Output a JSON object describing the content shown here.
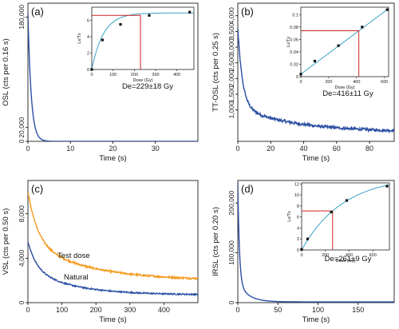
{
  "colors": {
    "signal": "#2b4fa3",
    "test": "#f39a1f",
    "fit": "#3aa3c6",
    "marker": "#cc2222",
    "axis": "#000000",
    "point": "#111111"
  },
  "chart_data": [
    {
      "id": "a",
      "type": "line",
      "panel_label": "(a)",
      "xlabel": "Time (s)",
      "ylabel": "OSL (cts per 0.16 s)",
      "xlim": [
        0,
        40
      ],
      "ylim": [
        0,
        200000
      ],
      "xticks": [
        0,
        10,
        20,
        30
      ],
      "xtick_labels": [
        "0",
        "10",
        "20",
        "30"
      ],
      "yticks": [
        0,
        20000,
        180000
      ],
      "ytick_labels": [
        "0",
        "20,000",
        "180,000"
      ],
      "series": [
        {
          "color": "signal",
          "decay": {
            "a": 185000,
            "k": 1.3,
            "b": 500,
            "c": 0,
            "k2": 1
          }
        }
      ],
      "inset": {
        "xlabel": "Dose (Gy)",
        "ylabel": "Lx/Tx",
        "xlim": [
          0,
          480
        ],
        "ylim": [
          0,
          7.6
        ],
        "xticks": [
          0,
          100,
          200,
          300,
          400
        ],
        "xtick_labels": [
          "0",
          "100",
          "200",
          "300",
          "400"
        ],
        "yticks": [
          0,
          2,
          4,
          6
        ],
        "ytick_labels": [
          "0",
          "2",
          "4",
          "6"
        ],
        "points": [
          [
            0,
            0.0
          ],
          [
            50,
            3.6
          ],
          [
            135,
            5.5
          ],
          [
            270,
            6.6
          ],
          [
            460,
            7.0
          ]
        ],
        "fit": {
          "type": "sat",
          "A": 6.9,
          "D0": 55
        },
        "natural": 6.6,
        "de": 229
      },
      "de_text": "De=229±18 Gy"
    },
    {
      "id": "b",
      "type": "line",
      "panel_label": "(b)",
      "xlabel": "Time (s)",
      "ylabel": "TT-OSL (cts per 0.25 s)",
      "xlim": [
        0,
        95
      ],
      "ylim": [
        0,
        4400
      ],
      "xticks": [
        0,
        20,
        40,
        60,
        80
      ],
      "xtick_labels": [
        "0",
        "20",
        "40",
        "60",
        "80"
      ],
      "yticks": [
        1000,
        1500,
        2000,
        2500,
        3000,
        3500,
        4000
      ],
      "ytick_labels": [
        "1,000",
        "1,500",
        "2,000",
        "2,500",
        "3,000",
        "3,500",
        "4,000"
      ],
      "series": [
        {
          "color": "signal",
          "noise": 45,
          "decay": {
            "a": 2500,
            "k": 0.35,
            "b": 800,
            "c": 300,
            "k2": 0.03
          }
        }
      ],
      "inset": {
        "xlabel": "Dose (Gy)",
        "ylabel": "Lx/Tx",
        "xlim": [
          0,
          630
        ],
        "ylim": [
          0,
          0.112
        ],
        "xticks": [
          0,
          200,
          400,
          600
        ],
        "xtick_labels": [
          "0",
          "200",
          "400",
          "600"
        ],
        "yticks": [
          0,
          0.02,
          0.04,
          0.06,
          0.08,
          0.1
        ],
        "ytick_labels": [
          "0",
          "0.02",
          "0.04",
          "0.06",
          "0.08",
          "0.1"
        ],
        "points": [
          [
            0,
            0.004
          ],
          [
            100,
            0.025
          ],
          [
            270,
            0.05
          ],
          [
            440,
            0.08
          ],
          [
            620,
            0.108
          ]
        ],
        "fit": {
          "type": "lin",
          "m": 0.000168,
          "c": 0.004
        },
        "natural": 0.074,
        "de": 416
      },
      "de_text": "De=416±11 Gy"
    },
    {
      "id": "c",
      "type": "line",
      "panel_label": "(c)",
      "xlabel": "Time (s)",
      "ylabel": "VSL (cts per 0.50 s)",
      "xlim": [
        0,
        500
      ],
      "ylim": [
        0,
        11000
      ],
      "xticks": [
        0,
        100,
        200,
        300,
        400
      ],
      "xtick_labels": [
        "0",
        "100",
        "200",
        "300",
        "400"
      ],
      "yticks": [
        0,
        4000,
        8000
      ],
      "ytick_labels": [
        "0",
        "4,000",
        "8,000"
      ],
      "series": [
        {
          "name": "Test dose",
          "color": "test",
          "noise": 80,
          "decay": {
            "a": 4500,
            "k": 0.035,
            "b": 3500,
            "c": 2000,
            "k2": 0.006
          }
        },
        {
          "name": "Natural",
          "color": "signal",
          "noise": 60,
          "decay": {
            "a": 2400,
            "k": 0.04,
            "b": 2400,
            "c": 700,
            "k2": 0.008
          }
        }
      ]
    },
    {
      "id": "d",
      "type": "line",
      "panel_label": "(d)",
      "xlabel": "Time (s)",
      "ylabel": "IRSL (cts per 0.20 s)",
      "xlim": [
        0,
        195
      ],
      "ylim": [
        0,
        245000
      ],
      "xticks": [
        0,
        50,
        100,
        150
      ],
      "xtick_labels": [
        "0",
        "50",
        "100",
        "150"
      ],
      "yticks": [
        0,
        100000,
        200000
      ],
      "ytick_labels": [
        "0",
        "100,000",
        "200,000"
      ],
      "series": [
        {
          "color": "signal",
          "decay": {
            "a": 200000,
            "k": 0.5,
            "b": 40000,
            "c": 1500,
            "k2": 0.08
          }
        }
      ],
      "inset": {
        "xlabel": "Dose (Gy)",
        "ylabel": "Lx/Tx",
        "xlim": [
          0,
          740
        ],
        "ylim": [
          0,
          12.2
        ],
        "xticks": [
          0,
          200,
          400,
          600
        ],
        "xtick_labels": [
          "0",
          "200",
          "400",
          "600"
        ],
        "yticks": [
          0,
          2,
          4,
          6,
          8,
          10,
          12
        ],
        "ytick_labels": [
          "0",
          "2",
          "4",
          "6",
          "8",
          "10",
          "12"
        ],
        "points": [
          [
            0,
            0.1
          ],
          [
            50,
            2.0
          ],
          [
            250,
            6.9
          ],
          [
            380,
            9.0
          ],
          [
            720,
            11.6
          ]
        ],
        "fit": {
          "type": "sat",
          "A": 13.5,
          "D0": 350
        },
        "natural": 7.1,
        "de": 261
      },
      "de_text": "De=261±9 Gy"
    }
  ]
}
